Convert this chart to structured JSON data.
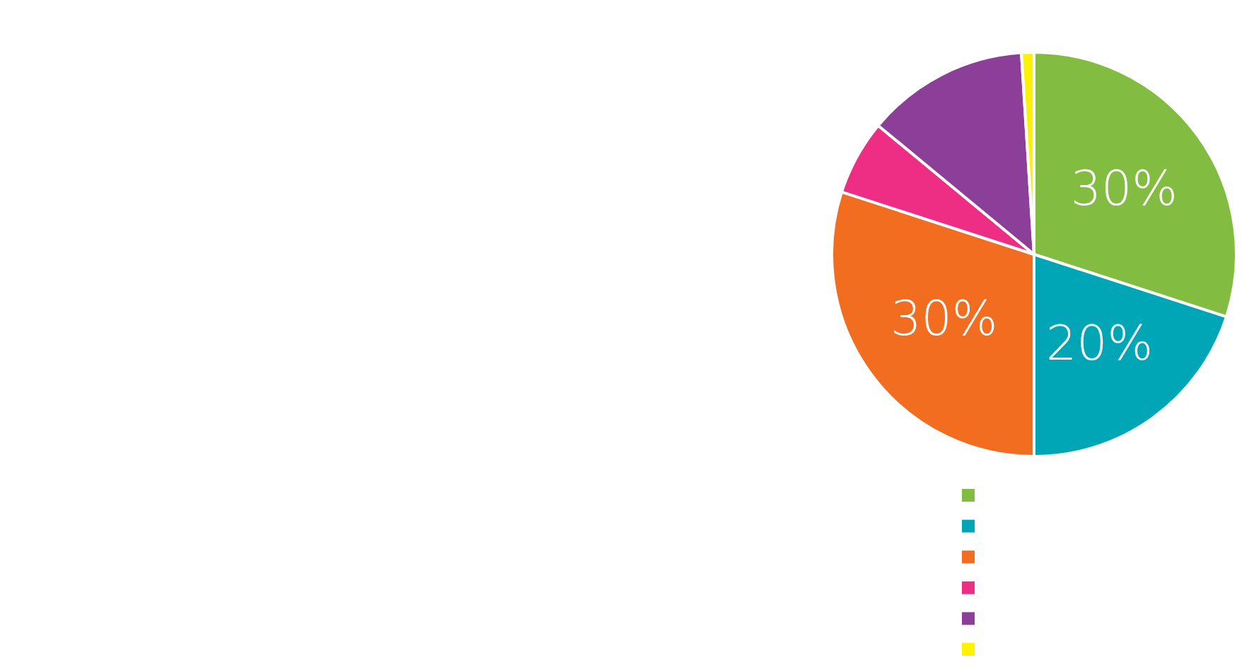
{
  "chart_data": {
    "type": "pie",
    "categories": [
      null,
      null,
      null,
      null,
      null,
      null
    ],
    "values": [
      30,
      20,
      30,
      6,
      13,
      1
    ],
    "colors": [
      "#82bc41",
      "#00a6b6",
      "#f36d21",
      "#ee2e85",
      "#8c3f98",
      "#fff200"
    ],
    "value_labels": [
      "30%",
      "20%",
      "30%",
      null,
      null,
      null
    ]
  }
}
